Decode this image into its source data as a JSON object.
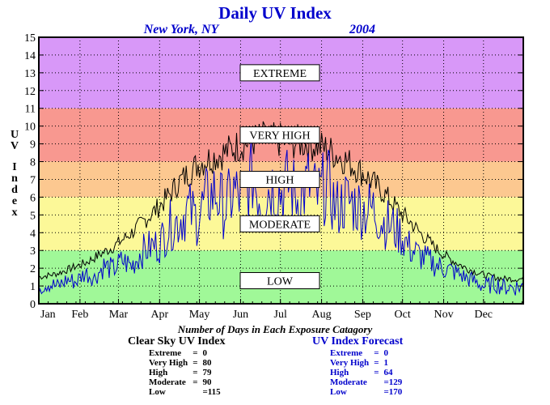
{
  "title": "Daily UV Index",
  "location": "New York, NY",
  "year": "2004",
  "ylabel": "UV Index",
  "colors": {
    "extreme": "#d898f8",
    "very_high": "#f89890",
    "high": "#fcc890",
    "moderate": "#fcf898",
    "low": "#a0f898",
    "clear_sky_line": "#000000",
    "forecast_line": "#0000cc",
    "title": "#0000cc"
  },
  "bands": [
    {
      "label": "EXTREME",
      "from": 11,
      "to": 15,
      "label_y": 13
    },
    {
      "label": "VERY HIGH",
      "from": 8,
      "to": 11,
      "label_y": 9.5
    },
    {
      "label": "HIGH",
      "from": 6,
      "to": 8,
      "label_y": 7
    },
    {
      "label": "MODERATE",
      "from": 3,
      "to": 6,
      "label_y": 4.5
    },
    {
      "label": "LOW",
      "from": 0,
      "to": 3,
      "label_y": 1.3
    }
  ],
  "counts_caption": "Number of Days in Each Exposure Catagory",
  "clear_sky": {
    "heading": "Clear Sky UV Index",
    "rows": [
      {
        "label": "Extreme",
        "value": "0"
      },
      {
        "label": "Very High",
        "value": "80"
      },
      {
        "label": "High",
        "value": "79"
      },
      {
        "label": "Moderate",
        "value": "90"
      },
      {
        "label": "Low",
        "value": "=115"
      }
    ]
  },
  "forecast": {
    "heading": "UV Index Forecast",
    "rows": [
      {
        "label": "Extreme",
        "value": "0"
      },
      {
        "label": "Very High",
        "value": "1"
      },
      {
        "label": "High",
        "value": "64"
      },
      {
        "label": "Moderate",
        "value": "=129"
      },
      {
        "label": "Low",
        "value": "=170"
      }
    ]
  },
  "chart_data": {
    "type": "line",
    "xlabel": "",
    "ylabel": "UV Index",
    "ylim": [
      0,
      15
    ],
    "yticks": [
      0,
      1,
      2,
      3,
      4,
      5,
      6,
      7,
      8,
      9,
      10,
      11,
      12,
      13,
      14,
      15
    ],
    "xlim": [
      1,
      366
    ],
    "x_tick_labels": [
      "Jan",
      "Feb",
      "Mar",
      "Apr",
      "May",
      "Jun",
      "Jul",
      "Aug",
      "Sep",
      "Oct",
      "Nov",
      "Dec"
    ],
    "x_tick_days": [
      1,
      32,
      61,
      92,
      122,
      153,
      183,
      214,
      245,
      275,
      306,
      336
    ],
    "grid": true,
    "series": [
      {
        "key": "clear_sky",
        "days": [
          1,
          8,
          15,
          22,
          29,
          36,
          43,
          50,
          57,
          64,
          71,
          78,
          85,
          92,
          99,
          106,
          113,
          120,
          127,
          134,
          141,
          148,
          155,
          162,
          169,
          176,
          183,
          190,
          197,
          204,
          211,
          218,
          225,
          232,
          239,
          246,
          253,
          260,
          267,
          274,
          281,
          288,
          295,
          302,
          309,
          316,
          323,
          330,
          337,
          344,
          351,
          358,
          365
        ],
        "values": [
          1.5,
          1.6,
          1.7,
          1.9,
          2.1,
          2.3,
          2.6,
          2.9,
          3.2,
          3.6,
          4.0,
          4.5,
          5.0,
          5.5,
          6.1,
          6.8,
          7.3,
          7.8,
          8.1,
          8.3,
          8.5,
          8.8,
          9.0,
          9.2,
          9.3,
          9.2,
          9.2,
          9.1,
          9.1,
          9.0,
          8.9,
          8.7,
          8.4,
          8.1,
          7.7,
          7.3,
          6.8,
          6.3,
          5.7,
          5.1,
          4.6,
          4.0,
          3.5,
          3.0,
          2.6,
          2.3,
          2.0,
          1.8,
          1.6,
          1.5,
          1.4,
          1.4,
          1.4
        ]
      },
      {
        "key": "forecast",
        "days": [
          1,
          8,
          15,
          22,
          29,
          36,
          43,
          50,
          57,
          64,
          71,
          78,
          85,
          92,
          99,
          106,
          113,
          120,
          127,
          134,
          141,
          148,
          155,
          162,
          169,
          176,
          183,
          190,
          197,
          204,
          211,
          218,
          225,
          232,
          239,
          246,
          253,
          260,
          267,
          274,
          281,
          288,
          295,
          302,
          309,
          316,
          323,
          330,
          337,
          344,
          351,
          358,
          365
        ],
        "values": [
          1.0,
          1.2,
          1.0,
          1.4,
          1.3,
          1.8,
          1.5,
          2.2,
          2.0,
          2.5,
          2.2,
          3.0,
          3.3,
          3.5,
          4.5,
          4.8,
          5.5,
          5.0,
          6.0,
          6.5,
          5.5,
          6.5,
          6.0,
          7.5,
          6.0,
          7.0,
          6.5,
          7.0,
          6.0,
          7.0,
          6.2,
          7.0,
          5.5,
          6.0,
          5.8,
          5.5,
          5.5,
          4.8,
          4.5,
          4.0,
          3.2,
          2.8,
          2.5,
          2.2,
          2.0,
          1.8,
          1.5,
          1.3,
          1.0,
          1.2,
          1.0,
          1.0,
          1.0
        ]
      }
    ]
  }
}
